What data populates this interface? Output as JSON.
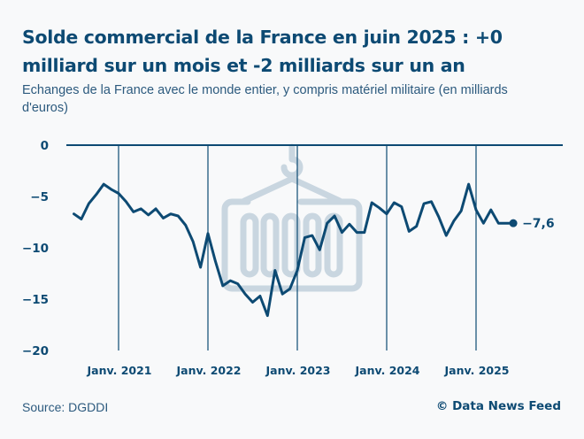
{
  "header": {
    "title": "Solde commercial de la France en juin 2025 : +0 milliard sur un mois et -2 milliards sur un an",
    "subtitle": "Echanges de la France avec le monde entier, y compris matériel militaire (en milliards d'euros)"
  },
  "footer": {
    "source": "Source: DGDDI",
    "credit": "© Data News Feed"
  },
  "colors": {
    "line": "#0d4a73",
    "watermark": "#c9d6e0",
    "background": "#f8f9fa"
  },
  "watermark_icon": "container-crane-icon",
  "chart_data": {
    "type": "line",
    "title": "Solde commercial de la France en juin 2025 : +0 milliard sur un mois et -2 milliards sur un an",
    "xlabel": "",
    "ylabel": "",
    "ylim": [
      -20,
      0
    ],
    "yticks": [
      0,
      -5,
      -10,
      -15,
      -20
    ],
    "ytick_labels": [
      "0",
      "−5",
      "−10",
      "−15",
      "−20"
    ],
    "grid": "vertical lines at January of each year",
    "x_start": "2020-07",
    "x_end": "2025-06",
    "xticks": [
      "2021-01",
      "2022-01",
      "2023-01",
      "2024-01",
      "2025-01"
    ],
    "xtick_labels": [
      "Janv. 2021",
      "Janv. 2022",
      "Janv. 2023",
      "Janv. 2024",
      "Janv. 2025"
    ],
    "end_label": "−7,6",
    "series": [
      {
        "name": "Solde commercial",
        "x": [
          "2020-07",
          "2020-08",
          "2020-09",
          "2020-10",
          "2020-11",
          "2020-12",
          "2021-01",
          "2021-02",
          "2021-03",
          "2021-04",
          "2021-05",
          "2021-06",
          "2021-07",
          "2021-08",
          "2021-09",
          "2021-10",
          "2021-11",
          "2021-12",
          "2022-01",
          "2022-02",
          "2022-03",
          "2022-04",
          "2022-05",
          "2022-06",
          "2022-07",
          "2022-08",
          "2022-09",
          "2022-10",
          "2022-11",
          "2022-12",
          "2023-01",
          "2023-02",
          "2023-03",
          "2023-04",
          "2023-05",
          "2023-06",
          "2023-07",
          "2023-08",
          "2023-09",
          "2023-10",
          "2023-11",
          "2023-12",
          "2024-01",
          "2024-02",
          "2024-03",
          "2024-04",
          "2024-05",
          "2024-06",
          "2024-07",
          "2024-08",
          "2024-09",
          "2024-10",
          "2024-11",
          "2024-12",
          "2025-01",
          "2025-02",
          "2025-03",
          "2025-04",
          "2025-05",
          "2025-06"
        ],
        "values": [
          -6.7,
          -7.2,
          -5.7,
          -4.8,
          -3.8,
          -4.3,
          -4.7,
          -5.5,
          -6.5,
          -6.2,
          -6.8,
          -6.2,
          -7.1,
          -6.7,
          -6.9,
          -7.8,
          -9.4,
          -11.9,
          -8.6,
          -11.3,
          -13.7,
          -13.2,
          -13.5,
          -14.5,
          -15.3,
          -14.7,
          -16.6,
          -12.2,
          -14.5,
          -14.0,
          -12.2,
          -9.0,
          -8.8,
          -10.2,
          -7.6,
          -6.9,
          -8.5,
          -7.7,
          -8.5,
          -8.5,
          -5.6,
          -6.1,
          -6.7,
          -5.6,
          -6.0,
          -8.4,
          -7.9,
          -5.7,
          -5.5,
          -7.0,
          -8.8,
          -7.4,
          -6.4,
          -3.8,
          -6.3,
          -7.6,
          -6.3,
          -7.6,
          -7.6,
          -7.6
        ]
      }
    ]
  }
}
